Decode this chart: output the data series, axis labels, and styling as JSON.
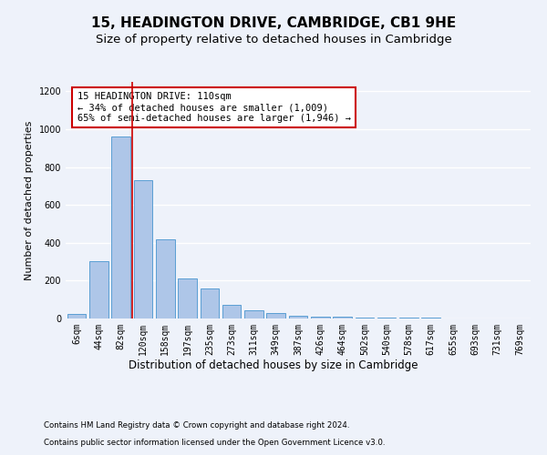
{
  "title": "15, HEADINGTON DRIVE, CAMBRIDGE, CB1 9HE",
  "subtitle": "Size of property relative to detached houses in Cambridge",
  "xlabel": "Distribution of detached houses by size in Cambridge",
  "ylabel": "Number of detached properties",
  "footnote1": "Contains HM Land Registry data © Crown copyright and database right 2024.",
  "footnote2": "Contains public sector information licensed under the Open Government Licence v3.0.",
  "bar_labels": [
    "6sqm",
    "44sqm",
    "82sqm",
    "120sqm",
    "158sqm",
    "197sqm",
    "235sqm",
    "273sqm",
    "311sqm",
    "349sqm",
    "387sqm",
    "426sqm",
    "464sqm",
    "502sqm",
    "540sqm",
    "578sqm",
    "617sqm",
    "655sqm",
    "693sqm",
    "731sqm",
    "769sqm"
  ],
  "bar_values": [
    25,
    305,
    960,
    730,
    420,
    210,
    160,
    70,
    45,
    30,
    15,
    12,
    8,
    5,
    4,
    3,
    3,
    2,
    2,
    2,
    2
  ],
  "bar_color": "#aec6e8",
  "bar_edge_color": "#5a9fd4",
  "annotation_text": "15 HEADINGTON DRIVE: 110sqm\n← 34% of detached houses are smaller (1,009)\n65% of semi-detached houses are larger (1,946) →",
  "annotation_box_color": "#ffffff",
  "annotation_box_edge": "#cc0000",
  "vline_x": 2.5,
  "vline_color": "#cc0000",
  "ylim": [
    0,
    1250
  ],
  "yticks": [
    0,
    200,
    400,
    600,
    800,
    1000,
    1200
  ],
  "background_color": "#eef2fa",
  "axes_background": "#eef2fa",
  "grid_color": "#ffffff",
  "title_fontsize": 11,
  "subtitle_fontsize": 9.5,
  "label_fontsize": 8.5,
  "ylabel_fontsize": 8,
  "tick_fontsize": 7,
  "annot_fontsize": 7.5
}
